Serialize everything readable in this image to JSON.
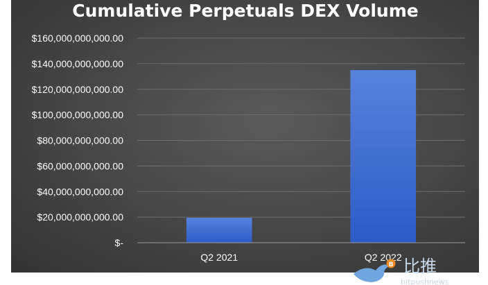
{
  "chart_data": {
    "type": "bar",
    "title": "Cumulative Perpetuals DEX Volume",
    "categories": [
      "Q2 2021",
      "Q2 2022"
    ],
    "values": [
      19500000000,
      135000000000
    ],
    "ylim": [
      0,
      160000000000
    ],
    "yticks": [
      {
        "value": 0,
        "label": "$-"
      },
      {
        "value": 20000000000,
        "label": "$20,000,000,000.00"
      },
      {
        "value": 40000000000,
        "label": "$40,000,000,000.00"
      },
      {
        "value": 60000000000,
        "label": "$60,000,000,000.00"
      },
      {
        "value": 80000000000,
        "label": "$80,000,000,000.00"
      },
      {
        "value": 100000000000,
        "label": "$100,000,000,000.00"
      },
      {
        "value": 120000000000,
        "label": "$120,000,000,000.00"
      },
      {
        "value": 140000000000,
        "label": "$140,000,000,000.00"
      },
      {
        "value": 160000000000,
        "label": "$160,000,000,000.00"
      }
    ],
    "grid": true,
    "legend": "none",
    "colors": {
      "bar_top": "#4f7ed8",
      "bar_bottom": "#2f5ec8",
      "background": "#474747"
    }
  },
  "watermark": {
    "text": "比推",
    "url": "bitpushnews"
  }
}
